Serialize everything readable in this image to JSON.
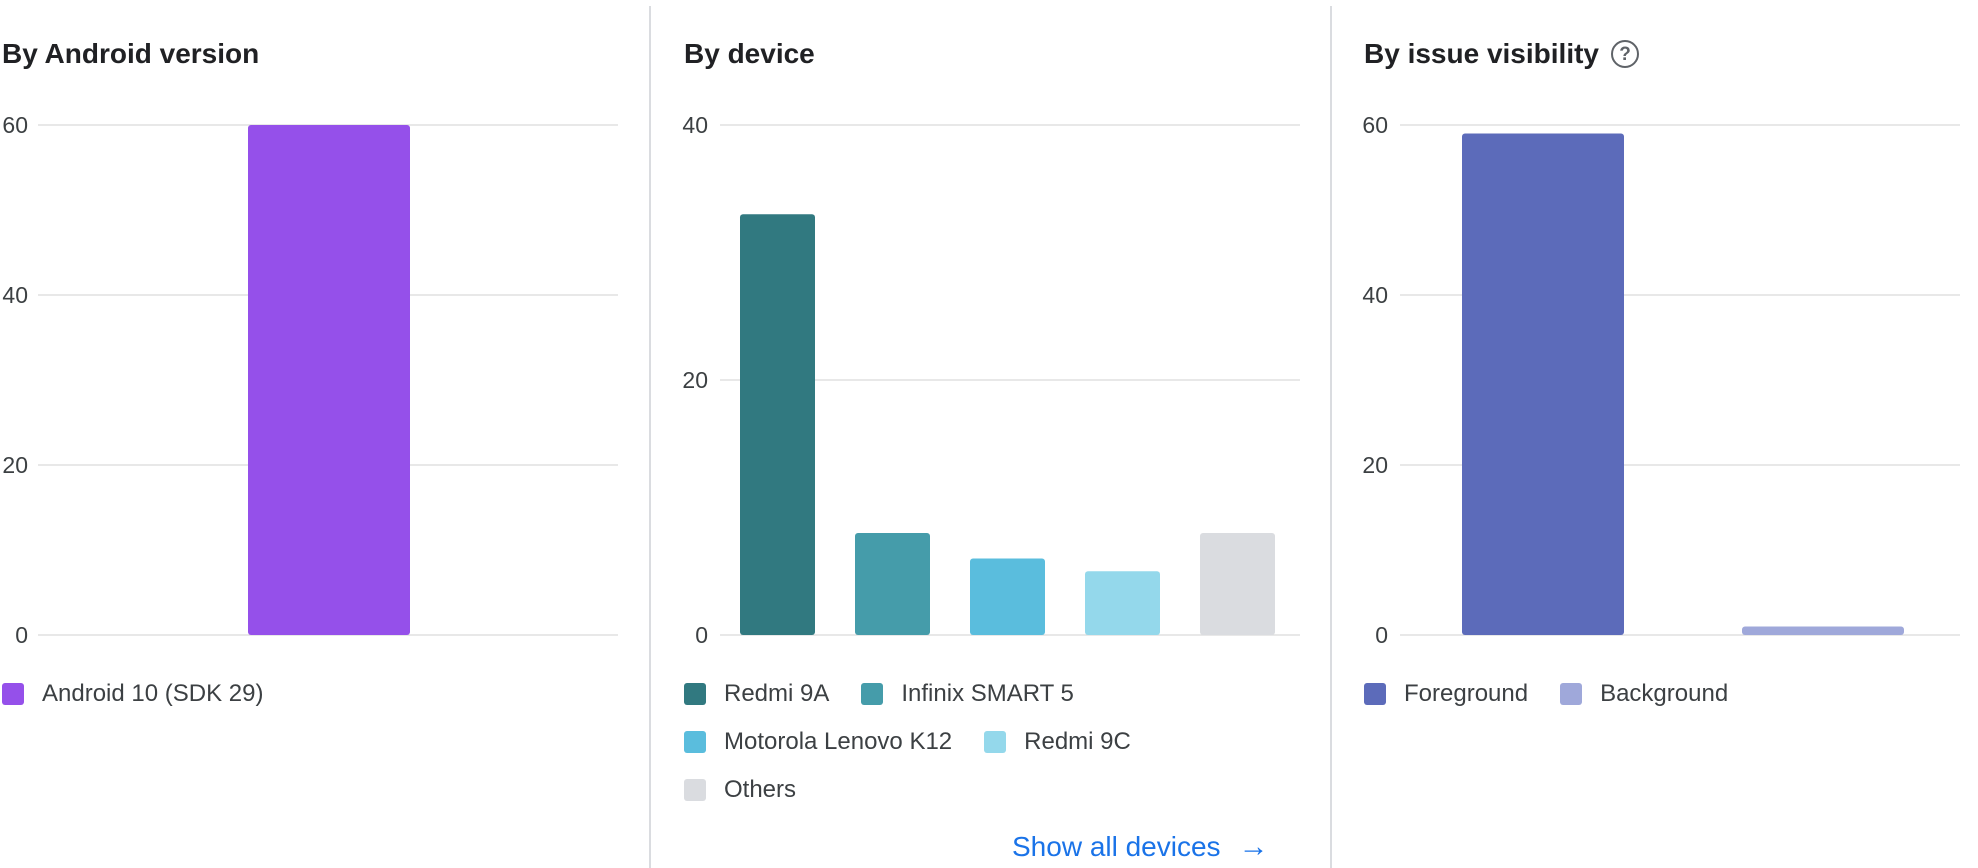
{
  "panels": [
    {
      "title": "By Android version",
      "legend": [
        {
          "label": "Android 10 (SDK 29)",
          "color": "#9550EA"
        }
      ]
    },
    {
      "title": "By device",
      "legend": [
        {
          "label": "Redmi 9A",
          "color": "#317980"
        },
        {
          "label": "Infinix SMART 5",
          "color": "#459CAA"
        },
        {
          "label": "Motorola Lenovo K12",
          "color": "#5ABDDD"
        },
        {
          "label": "Redmi 9C",
          "color": "#94D8EB"
        },
        {
          "label": "Others",
          "color": "#DADCE0"
        }
      ],
      "link": {
        "label": "Show all devices",
        "icon": "arrow-right-icon"
      }
    },
    {
      "title": "By issue visibility",
      "help_icon": "help-circle-icon",
      "help_glyph": "?",
      "legend": [
        {
          "label": "Foreground",
          "color": "#5C6BBA"
        },
        {
          "label": "Background",
          "color": "#9FA8DA"
        }
      ]
    }
  ],
  "chart_data": [
    {
      "type": "bar",
      "categories": [
        "Android 10 (SDK 29)"
      ],
      "values": [
        60
      ],
      "colors": [
        "#9550EA"
      ],
      "ylim": [
        0,
        60
      ],
      "yticks": [
        0,
        20,
        40,
        60
      ],
      "grid": true,
      "legend": "bottom"
    },
    {
      "type": "bar",
      "categories": [
        "Redmi 9A",
        "Infinix SMART 5",
        "Motorola Lenovo K12",
        "Redmi 9C",
        "Others"
      ],
      "values": [
        33,
        8,
        6,
        5,
        8
      ],
      "colors": [
        "#317980",
        "#459CAA",
        "#5ABDDD",
        "#94D8EB",
        "#DADCE0"
      ],
      "ylim": [
        0,
        40
      ],
      "yticks": [
        0,
        20,
        40
      ],
      "grid": true,
      "legend": "bottom"
    },
    {
      "type": "bar",
      "categories": [
        "Foreground",
        "Background"
      ],
      "values": [
        59,
        1
      ],
      "colors": [
        "#5C6BBA",
        "#9FA8DA"
      ],
      "ylim": [
        0,
        60
      ],
      "yticks": [
        0,
        20,
        40,
        60
      ],
      "grid": true,
      "legend": "bottom"
    }
  ]
}
